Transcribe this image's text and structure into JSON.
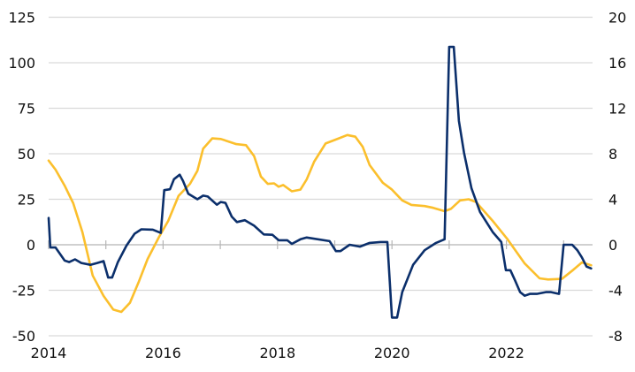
{
  "chart_data": {
    "type": "line",
    "title": "",
    "xlabel": "",
    "ylabel": "",
    "y2label": "",
    "grid": true,
    "legend": "none",
    "xlim": [
      2014,
      2023.6
    ],
    "x_ticks": [
      "2014",
      "2016",
      "2018",
      "2020",
      "2022"
    ],
    "ylim_left": [
      -50,
      125
    ],
    "y_ticks_left": [
      "125",
      "100",
      "75",
      "50",
      "25",
      "0",
      "-25",
      "-50"
    ],
    "ylim_right": [
      -8,
      20
    ],
    "y_ticks_right": [
      "20",
      "16",
      "12",
      "8",
      "4",
      "0",
      "-4",
      "-8"
    ],
    "series": [
      {
        "axis": "left",
        "color": "#0b2f6b",
        "points": [
          [
            2014.0,
            14.7
          ],
          [
            2014.03,
            -1.5
          ],
          [
            2014.12,
            -1.5
          ],
          [
            2014.28,
            -8.7
          ],
          [
            2014.36,
            -9.5
          ],
          [
            2014.46,
            -8
          ],
          [
            2014.57,
            -10
          ],
          [
            2014.73,
            -11
          ],
          [
            2014.85,
            -10
          ],
          [
            2014.96,
            -9
          ],
          [
            2015.04,
            -18
          ],
          [
            2015.11,
            -18
          ],
          [
            2015.21,
            -9.5
          ],
          [
            2015.36,
            -0.5
          ],
          [
            2015.5,
            6
          ],
          [
            2015.62,
            8.5
          ],
          [
            2015.82,
            8.3
          ],
          [
            2015.96,
            6.5
          ],
          [
            2016.02,
            30
          ],
          [
            2016.12,
            30.5
          ],
          [
            2016.19,
            36
          ],
          [
            2016.29,
            38.5
          ],
          [
            2016.35,
            35
          ],
          [
            2016.44,
            28
          ],
          [
            2016.6,
            25
          ],
          [
            2016.7,
            27
          ],
          [
            2016.78,
            26.5
          ],
          [
            2016.94,
            22
          ],
          [
            2017.01,
            23.5
          ],
          [
            2017.09,
            23
          ],
          [
            2017.2,
            15.5
          ],
          [
            2017.29,
            12.5
          ],
          [
            2017.43,
            13.5
          ],
          [
            2017.59,
            10.5
          ],
          [
            2017.76,
            5.7
          ],
          [
            2017.91,
            5.5
          ],
          [
            2018.02,
            2.5
          ],
          [
            2018.17,
            2.5
          ],
          [
            2018.25,
            0.5
          ],
          [
            2018.4,
            3
          ],
          [
            2018.51,
            4
          ],
          [
            2018.91,
            2
          ],
          [
            2019.02,
            -3.5
          ],
          [
            2019.1,
            -3.5
          ],
          [
            2019.26,
            0
          ],
          [
            2019.44,
            -1
          ],
          [
            2019.61,
            1
          ],
          [
            2019.8,
            1.5
          ],
          [
            2019.92,
            1.5
          ],
          [
            2020.0,
            -40
          ],
          [
            2020.09,
            -40
          ],
          [
            2020.18,
            -26
          ],
          [
            2020.37,
            -11
          ],
          [
            2020.57,
            -3
          ],
          [
            2020.77,
            1
          ],
          [
            2020.92,
            3
          ],
          [
            2021.0,
            108.7
          ],
          [
            2021.08,
            108.7
          ],
          [
            2021.17,
            68
          ],
          [
            2021.26,
            50.5
          ],
          [
            2021.39,
            31
          ],
          [
            2021.54,
            18
          ],
          [
            2021.76,
            7
          ],
          [
            2021.91,
            1.5
          ],
          [
            2021.99,
            -14
          ],
          [
            2022.07,
            -14
          ],
          [
            2022.15,
            -19.5
          ],
          [
            2022.24,
            -26
          ],
          [
            2022.32,
            -28
          ],
          [
            2022.41,
            -27
          ],
          [
            2022.53,
            -27
          ],
          [
            2022.69,
            -26
          ],
          [
            2022.78,
            -26
          ],
          [
            2022.92,
            -27
          ],
          [
            2023.0,
            0
          ],
          [
            2023.15,
            0
          ],
          [
            2023.24,
            -3
          ],
          [
            2023.32,
            -7
          ],
          [
            2023.4,
            -12
          ],
          [
            2023.48,
            -13
          ]
        ]
      },
      {
        "axis": "right",
        "color": "#fbbf2c",
        "points": [
          [
            2014.0,
            7.4
          ],
          [
            2014.12,
            6.6
          ],
          [
            2014.28,
            5.2
          ],
          [
            2014.43,
            3.65
          ],
          [
            2014.59,
            1.1
          ],
          [
            2014.77,
            -2.7
          ],
          [
            2014.96,
            -4.5
          ],
          [
            2015.13,
            -5.7
          ],
          [
            2015.27,
            -5.9
          ],
          [
            2015.42,
            -5.1
          ],
          [
            2015.58,
            -3.2
          ],
          [
            2015.73,
            -1.25
          ],
          [
            2015.93,
            0.7
          ],
          [
            2016.09,
            2.1
          ],
          [
            2016.27,
            4.3
          ],
          [
            2016.47,
            5.35
          ],
          [
            2016.6,
            6.5
          ],
          [
            2016.7,
            8.45
          ],
          [
            2016.86,
            9.35
          ],
          [
            2017.01,
            9.3
          ],
          [
            2017.28,
            8.85
          ],
          [
            2017.45,
            8.75
          ],
          [
            2017.59,
            7.8
          ],
          [
            2017.71,
            6.0
          ],
          [
            2017.83,
            5.35
          ],
          [
            2017.94,
            5.4
          ],
          [
            2018.02,
            5.1
          ],
          [
            2018.1,
            5.25
          ],
          [
            2018.25,
            4.7
          ],
          [
            2018.4,
            4.85
          ],
          [
            2018.51,
            5.75
          ],
          [
            2018.64,
            7.3
          ],
          [
            2018.84,
            8.9
          ],
          [
            2019.02,
            9.25
          ],
          [
            2019.22,
            9.65
          ],
          [
            2019.36,
            9.5
          ],
          [
            2019.49,
            8.6
          ],
          [
            2019.61,
            7.0
          ],
          [
            2019.84,
            5.45
          ],
          [
            2020.0,
            4.85
          ],
          [
            2020.18,
            3.9
          ],
          [
            2020.34,
            3.5
          ],
          [
            2020.57,
            3.4
          ],
          [
            2020.72,
            3.25
          ],
          [
            2020.92,
            2.95
          ],
          [
            2021.03,
            3.15
          ],
          [
            2021.19,
            3.9
          ],
          [
            2021.34,
            4.0
          ],
          [
            2021.47,
            3.75
          ],
          [
            2021.76,
            2.1
          ],
          [
            2022.01,
            0.55
          ],
          [
            2022.32,
            -1.65
          ],
          [
            2022.58,
            -2.95
          ],
          [
            2022.73,
            -3.05
          ],
          [
            2022.97,
            -3.0
          ],
          [
            2023.17,
            -2.2
          ],
          [
            2023.32,
            -1.55
          ],
          [
            2023.48,
            -1.8
          ]
        ]
      }
    ]
  }
}
